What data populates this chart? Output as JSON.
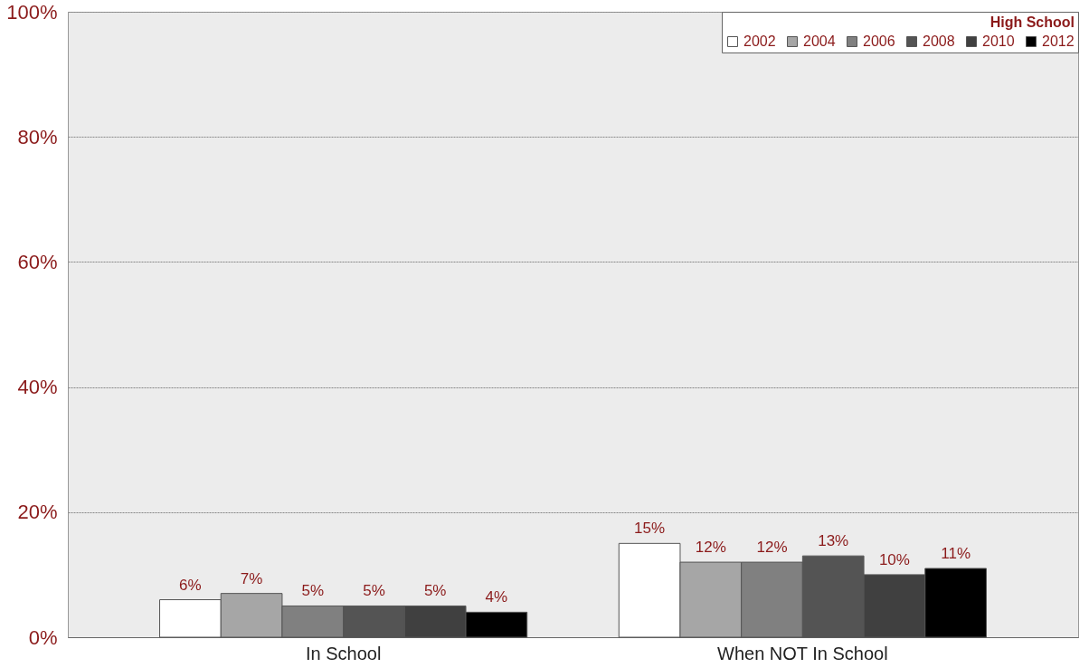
{
  "chart_data": {
    "type": "bar",
    "legend_title": "High School",
    "categories": [
      "In School",
      "When NOT In School"
    ],
    "series": [
      {
        "name": "2002",
        "color": "#ffffff",
        "values": [
          6,
          15
        ],
        "value_labels": [
          "6%",
          "15%"
        ]
      },
      {
        "name": "2004",
        "color": "#a6a6a6",
        "values": [
          7,
          12
        ],
        "value_labels": [
          "7%",
          "12%"
        ]
      },
      {
        "name": "2006",
        "color": "#808080",
        "values": [
          5,
          12
        ],
        "value_labels": [
          "5%",
          "12%"
        ]
      },
      {
        "name": "2008",
        "color": "#545454",
        "values": [
          5,
          13
        ],
        "value_labels": [
          "5%",
          "13%"
        ]
      },
      {
        "name": "2010",
        "color": "#404040",
        "values": [
          5,
          10
        ],
        "value_labels": [
          "5%",
          "10%"
        ]
      },
      {
        "name": "2012",
        "color": "#000000",
        "values": [
          4,
          11
        ],
        "value_labels": [
          "4%",
          "11%"
        ]
      }
    ],
    "ylim": [
      0,
      100
    ],
    "yticks": [
      {
        "value": 0,
        "label": "0%"
      },
      {
        "value": 20,
        "label": "20%"
      },
      {
        "value": 40,
        "label": "40%"
      },
      {
        "value": 60,
        "label": "60%"
      },
      {
        "value": 80,
        "label": "80%"
      },
      {
        "value": 100,
        "label": "100%"
      }
    ],
    "grid": "y",
    "legend": "top right"
  }
}
